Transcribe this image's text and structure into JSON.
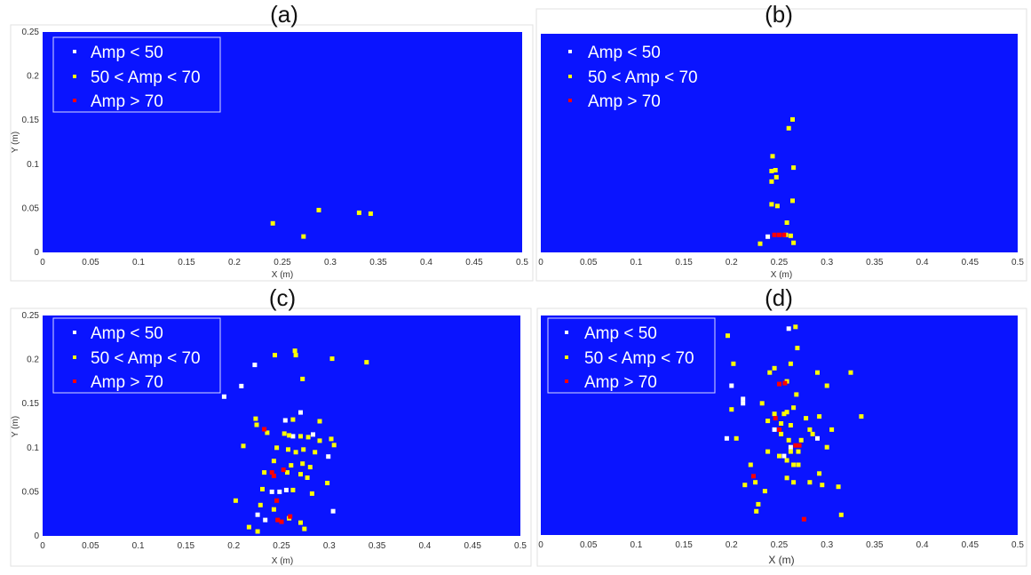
{
  "figure": {
    "panels": [
      {
        "id": "a",
        "label": "(a)",
        "xlabel": "X (m)",
        "ylabel": "Y (m)",
        "xticks": [
          "0",
          "0.05",
          "0.1",
          "0.15",
          "0.2",
          "0.25",
          "0.3",
          "0.35",
          "0.4",
          "0.45",
          "0.5"
        ],
        "yticks": [
          "0",
          "0.05",
          "0.1",
          "0.15",
          "0.2",
          "0.25"
        ],
        "legend": [
          "Amp < 50",
          "50 < Amp < 70",
          "Amp > 70"
        ]
      },
      {
        "id": "b",
        "label": "(b)",
        "xlabel": "X (m)",
        "ylabel": "",
        "xticks": [
          "0",
          "0.05",
          "0.1",
          "0.15",
          "0.2",
          "0.25",
          "0.3",
          "0.35",
          "0.4",
          "0.45",
          "0.5"
        ],
        "yticks": [],
        "legend": [
          "Amp < 50",
          "50 < Amp < 70",
          "Amp > 70"
        ]
      },
      {
        "id": "c",
        "label": "(c)",
        "xlabel": "X (m)",
        "ylabel": "Y (m)",
        "xticks": [
          "0",
          "0.05",
          "0.1",
          "0.15",
          "0.2",
          "0.25",
          "0.3",
          "0.35",
          "0.4",
          "0.45",
          "0.5"
        ],
        "yticks": [
          "0",
          "0.05",
          "0.1",
          "0.15",
          "0.2",
          "0.25"
        ],
        "legend": [
          "Amp < 50",
          "50 < Amp < 70",
          "Amp > 70"
        ]
      },
      {
        "id": "d",
        "label": "(d)",
        "xlabel": "X (m)",
        "ylabel": "",
        "xticks": [
          "0",
          "0.05",
          "0.1",
          "0.15",
          "0.2",
          "0.25",
          "0.3",
          "0.35",
          "0.4",
          "0.45",
          "0.5"
        ],
        "yticks": [],
        "legend": [
          "Amp < 50",
          "50 < Amp < 70",
          "Amp > 70"
        ]
      }
    ]
  },
  "colors": {
    "background": "#0a14ff",
    "low": "#ffffff",
    "mid": "#ffff00",
    "high": "#ff0000",
    "axis": "#333333"
  },
  "chart_data": [
    {
      "panel": "a",
      "type": "scatter",
      "xlabel": "X (m)",
      "ylabel": "Y (m)",
      "xlim": [
        0,
        0.5
      ],
      "ylim": [
        0,
        0.25
      ],
      "legend_placement": "top-left",
      "series": [
        {
          "name": "Amp < 50",
          "color": "#ffffff",
          "points": []
        },
        {
          "name": "50 < Amp < 70",
          "color": "#ffff00",
          "points": [
            [
              0.24,
              0.033
            ],
            [
              0.272,
              0.018
            ],
            [
              0.288,
              0.048
            ],
            [
              0.33,
              0.045
            ],
            [
              0.342,
              0.044
            ]
          ]
        },
        {
          "name": "Amp > 70",
          "color": "#ff0000",
          "points": []
        }
      ]
    },
    {
      "panel": "b",
      "type": "scatter",
      "xlabel": "X (m)",
      "ylabel": "",
      "xlim": [
        0,
        0.5
      ],
      "ylim": [
        0,
        0.25
      ],
      "legend_placement": "top-left",
      "series": [
        {
          "name": "Amp < 50",
          "color": "#ffffff",
          "points": [
            [
              0.238,
              0.018
            ]
          ]
        },
        {
          "name": "50 < Amp < 70",
          "color": "#ffff00",
          "points": [
            [
              0.264,
              0.152
            ],
            [
              0.26,
              0.142
            ],
            [
              0.243,
              0.11
            ],
            [
              0.265,
              0.097
            ],
            [
              0.242,
              0.093
            ],
            [
              0.246,
              0.094
            ],
            [
              0.247,
              0.086
            ],
            [
              0.242,
              0.081
            ],
            [
              0.264,
              0.059
            ],
            [
              0.242,
              0.055
            ],
            [
              0.248,
              0.053
            ],
            [
              0.258,
              0.034
            ],
            [
              0.257,
              0.02
            ],
            [
              0.262,
              0.019
            ],
            [
              0.23,
              0.01
            ],
            [
              0.265,
              0.011
            ]
          ]
        },
        {
          "name": "Amp > 70",
          "color": "#ff0000",
          "points": [
            [
              0.245,
              0.02
            ],
            [
              0.25,
              0.02
            ],
            [
              0.255,
              0.02
            ]
          ]
        }
      ]
    },
    {
      "panel": "c",
      "type": "scatter",
      "xlabel": "X (m)",
      "ylabel": "Y (m)",
      "xlim": [
        0,
        0.5
      ],
      "ylim": [
        0,
        0.25
      ],
      "legend_placement": "top-left",
      "series": [
        {
          "name": "Amp < 50",
          "color": "#ffffff",
          "points": [
            [
              0.19,
              0.158
            ],
            [
              0.208,
              0.17
            ],
            [
              0.222,
              0.194
            ],
            [
              0.254,
              0.131
            ],
            [
              0.27,
              0.14
            ],
            [
              0.262,
              0.113
            ],
            [
              0.283,
              0.115
            ],
            [
              0.299,
              0.09
            ],
            [
              0.24,
              0.05
            ],
            [
              0.248,
              0.05
            ],
            [
              0.255,
              0.052
            ],
            [
              0.225,
              0.024
            ],
            [
              0.233,
              0.018
            ],
            [
              0.304,
              0.028
            ]
          ]
        },
        {
          "name": "50 < Amp < 70",
          "color": "#ffff00",
          "points": [
            [
              0.243,
              0.205
            ],
            [
              0.264,
              0.21
            ],
            [
              0.265,
              0.205
            ],
            [
              0.303,
              0.201
            ],
            [
              0.339,
              0.197
            ],
            [
              0.272,
              0.178
            ],
            [
              0.223,
              0.133
            ],
            [
              0.224,
              0.126
            ],
            [
              0.262,
              0.132
            ],
            [
              0.29,
              0.13
            ],
            [
              0.235,
              0.117
            ],
            [
              0.253,
              0.116
            ],
            [
              0.258,
              0.114
            ],
            [
              0.27,
              0.113
            ],
            [
              0.278,
              0.112
            ],
            [
              0.29,
              0.108
            ],
            [
              0.302,
              0.11
            ],
            [
              0.305,
              0.103
            ],
            [
              0.21,
              0.102
            ],
            [
              0.245,
              0.1
            ],
            [
              0.257,
              0.098
            ],
            [
              0.265,
              0.095
            ],
            [
              0.273,
              0.098
            ],
            [
              0.285,
              0.095
            ],
            [
              0.242,
              0.085
            ],
            [
              0.26,
              0.08
            ],
            [
              0.272,
              0.082
            ],
            [
              0.28,
              0.078
            ],
            [
              0.232,
              0.072
            ],
            [
              0.256,
              0.072
            ],
            [
              0.27,
              0.07
            ],
            [
              0.277,
              0.066
            ],
            [
              0.23,
              0.053
            ],
            [
              0.262,
              0.052
            ],
            [
              0.282,
              0.048
            ],
            [
              0.298,
              0.06
            ],
            [
              0.202,
              0.04
            ],
            [
              0.228,
              0.035
            ],
            [
              0.242,
              0.03
            ],
            [
              0.216,
              0.01
            ],
            [
              0.225,
              0.005
            ],
            [
              0.258,
              0.02
            ],
            [
              0.27,
              0.015
            ],
            [
              0.274,
              0.008
            ]
          ]
        },
        {
          "name": "Amp > 70",
          "color": "#ff0000",
          "points": [
            [
              0.232,
              0.121
            ],
            [
              0.24,
              0.072
            ],
            [
              0.242,
              0.068
            ],
            [
              0.252,
              0.075
            ],
            [
              0.245,
              0.04
            ],
            [
              0.246,
              0.018
            ],
            [
              0.25,
              0.016
            ],
            [
              0.259,
              0.022
            ]
          ]
        }
      ]
    },
    {
      "panel": "d",
      "type": "scatter",
      "xlabel": "X (m)",
      "ylabel": "",
      "xlim": [
        0,
        0.5
      ],
      "ylim": [
        0,
        0.25
      ],
      "legend_placement": "top-left",
      "series": [
        {
          "name": "Amp < 50",
          "color": "#ffffff",
          "points": [
            [
              0.26,
              0.235
            ],
            [
              0.2,
              0.17
            ],
            [
              0.212,
              0.155
            ],
            [
              0.212,
              0.15
            ],
            [
              0.195,
              0.11
            ],
            [
              0.245,
              0.12
            ],
            [
              0.29,
              0.11
            ],
            [
              0.262,
              0.1
            ],
            [
              0.255,
              0.09
            ]
          ]
        },
        {
          "name": "50 < Amp < 70",
          "color": "#ffff00",
          "points": [
            [
              0.196,
              0.227
            ],
            [
              0.267,
              0.237
            ],
            [
              0.269,
              0.213
            ],
            [
              0.245,
              0.19
            ],
            [
              0.24,
              0.185
            ],
            [
              0.202,
              0.195
            ],
            [
              0.262,
              0.195
            ],
            [
              0.29,
              0.185
            ],
            [
              0.325,
              0.185
            ],
            [
              0.258,
              0.175
            ],
            [
              0.268,
              0.16
            ],
            [
              0.3,
              0.17
            ],
            [
              0.2,
              0.143
            ],
            [
              0.232,
              0.15
            ],
            [
              0.245,
              0.138
            ],
            [
              0.255,
              0.138
            ],
            [
              0.258,
              0.14
            ],
            [
              0.265,
              0.145
            ],
            [
              0.278,
              0.133
            ],
            [
              0.292,
              0.135
            ],
            [
              0.336,
              0.135
            ],
            [
              0.238,
              0.13
            ],
            [
              0.252,
              0.127
            ],
            [
              0.262,
              0.125
            ],
            [
              0.282,
              0.12
            ],
            [
              0.305,
              0.12
            ],
            [
              0.252,
              0.115
            ],
            [
              0.26,
              0.108
            ],
            [
              0.273,
              0.108
            ],
            [
              0.285,
              0.115
            ],
            [
              0.205,
              0.11
            ],
            [
              0.238,
              0.095
            ],
            [
              0.25,
              0.09
            ],
            [
              0.262,
              0.095
            ],
            [
              0.27,
              0.095
            ],
            [
              0.3,
              0.1
            ],
            [
              0.258,
              0.085
            ],
            [
              0.265,
              0.08
            ],
            [
              0.27,
              0.08
            ],
            [
              0.22,
              0.08
            ],
            [
              0.292,
              0.07
            ],
            [
              0.225,
              0.06
            ],
            [
              0.258,
              0.065
            ],
            [
              0.265,
              0.06
            ],
            [
              0.282,
              0.06
            ],
            [
              0.295,
              0.057
            ],
            [
              0.312,
              0.055
            ],
            [
              0.214,
              0.057
            ],
            [
              0.235,
              0.05
            ],
            [
              0.228,
              0.035
            ],
            [
              0.226,
              0.027
            ],
            [
              0.315,
              0.023
            ]
          ]
        },
        {
          "name": "Amp > 70",
          "color": "#ff0000",
          "points": [
            [
              0.25,
              0.172
            ],
            [
              0.256,
              0.173
            ],
            [
              0.246,
              0.133
            ],
            [
              0.25,
              0.12
            ],
            [
              0.267,
              0.102
            ],
            [
              0.271,
              0.102
            ],
            [
              0.223,
              0.067
            ],
            [
              0.276,
              0.018
            ]
          ]
        }
      ]
    }
  ]
}
